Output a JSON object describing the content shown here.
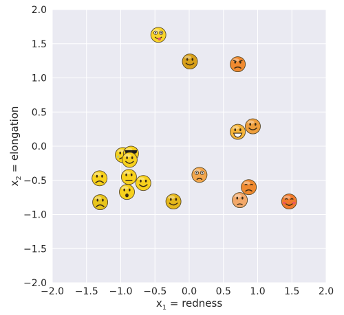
{
  "chart_data": {
    "type": "scatter",
    "marker": "emoji-faces",
    "xlim": [
      -2.0,
      2.0
    ],
    "ylim": [
      -2.0,
      2.0
    ],
    "xticks": [
      "−2.0",
      "−1.5",
      "−1.0",
      "−0.5",
      "0.0",
      "0.5",
      "1.0",
      "1.5",
      "2.0"
    ],
    "yticks": [
      "−2.0",
      "−1.5",
      "−1.0",
      "−0.5",
      "0.0",
      "0.5",
      "1.0",
      "1.5",
      "2.0"
    ],
    "xlabel": {
      "base": "x",
      "sub": "1",
      "rest": " = redness"
    },
    "ylabel": {
      "base": "x",
      "sub": "2",
      "rest": " = elongation"
    },
    "grid": true,
    "plot_background": "#eaeaf2",
    "grid_color": "#ffffff",
    "points": [
      {
        "x": -0.45,
        "y": 1.63,
        "face": "tongue-out",
        "color": "#f9d42a"
      },
      {
        "x": 0.01,
        "y": 1.24,
        "face": "smile",
        "color": "#d8a01a"
      },
      {
        "x": 0.71,
        "y": 1.2,
        "face": "angry",
        "color": "#f08a30"
      },
      {
        "x": 0.71,
        "y": 0.21,
        "face": "grin",
        "color": "#f6b53a"
      },
      {
        "x": 0.93,
        "y": 0.29,
        "face": "smile",
        "color": "#ee9e3c"
      },
      {
        "x": -0.97,
        "y": -0.13,
        "face": "sad-tear",
        "color": "#f5d21e"
      },
      {
        "x": -0.85,
        "y": -0.11,
        "face": "sunglasses",
        "color": "#f7d11d"
      },
      {
        "x": -0.87,
        "y": -0.2,
        "face": "smile",
        "color": "#f7d11d"
      },
      {
        "x": -1.31,
        "y": -0.47,
        "face": "frown",
        "color": "#f7d11d"
      },
      {
        "x": -0.88,
        "y": -0.45,
        "face": "neutral",
        "color": "#f7d11d"
      },
      {
        "x": -0.67,
        "y": -0.54,
        "face": "smile",
        "color": "#f7d11d"
      },
      {
        "x": -0.91,
        "y": -0.67,
        "face": "surprised",
        "color": "#f7d11d"
      },
      {
        "x": -1.3,
        "y": -0.82,
        "face": "frown",
        "color": "#e8c51a"
      },
      {
        "x": -0.23,
        "y": -0.81,
        "face": "smile",
        "color": "#e5b81c"
      },
      {
        "x": 0.15,
        "y": -0.42,
        "face": "worried",
        "color": "#f2a64d"
      },
      {
        "x": 0.87,
        "y": -0.6,
        "face": "disappointed",
        "color": "#f08a30"
      },
      {
        "x": 0.74,
        "y": -0.79,
        "face": "sad",
        "color": "#f2a86a"
      },
      {
        "x": 1.46,
        "y": -0.81,
        "face": "blush",
        "color": "#f07a2d"
      }
    ]
  }
}
